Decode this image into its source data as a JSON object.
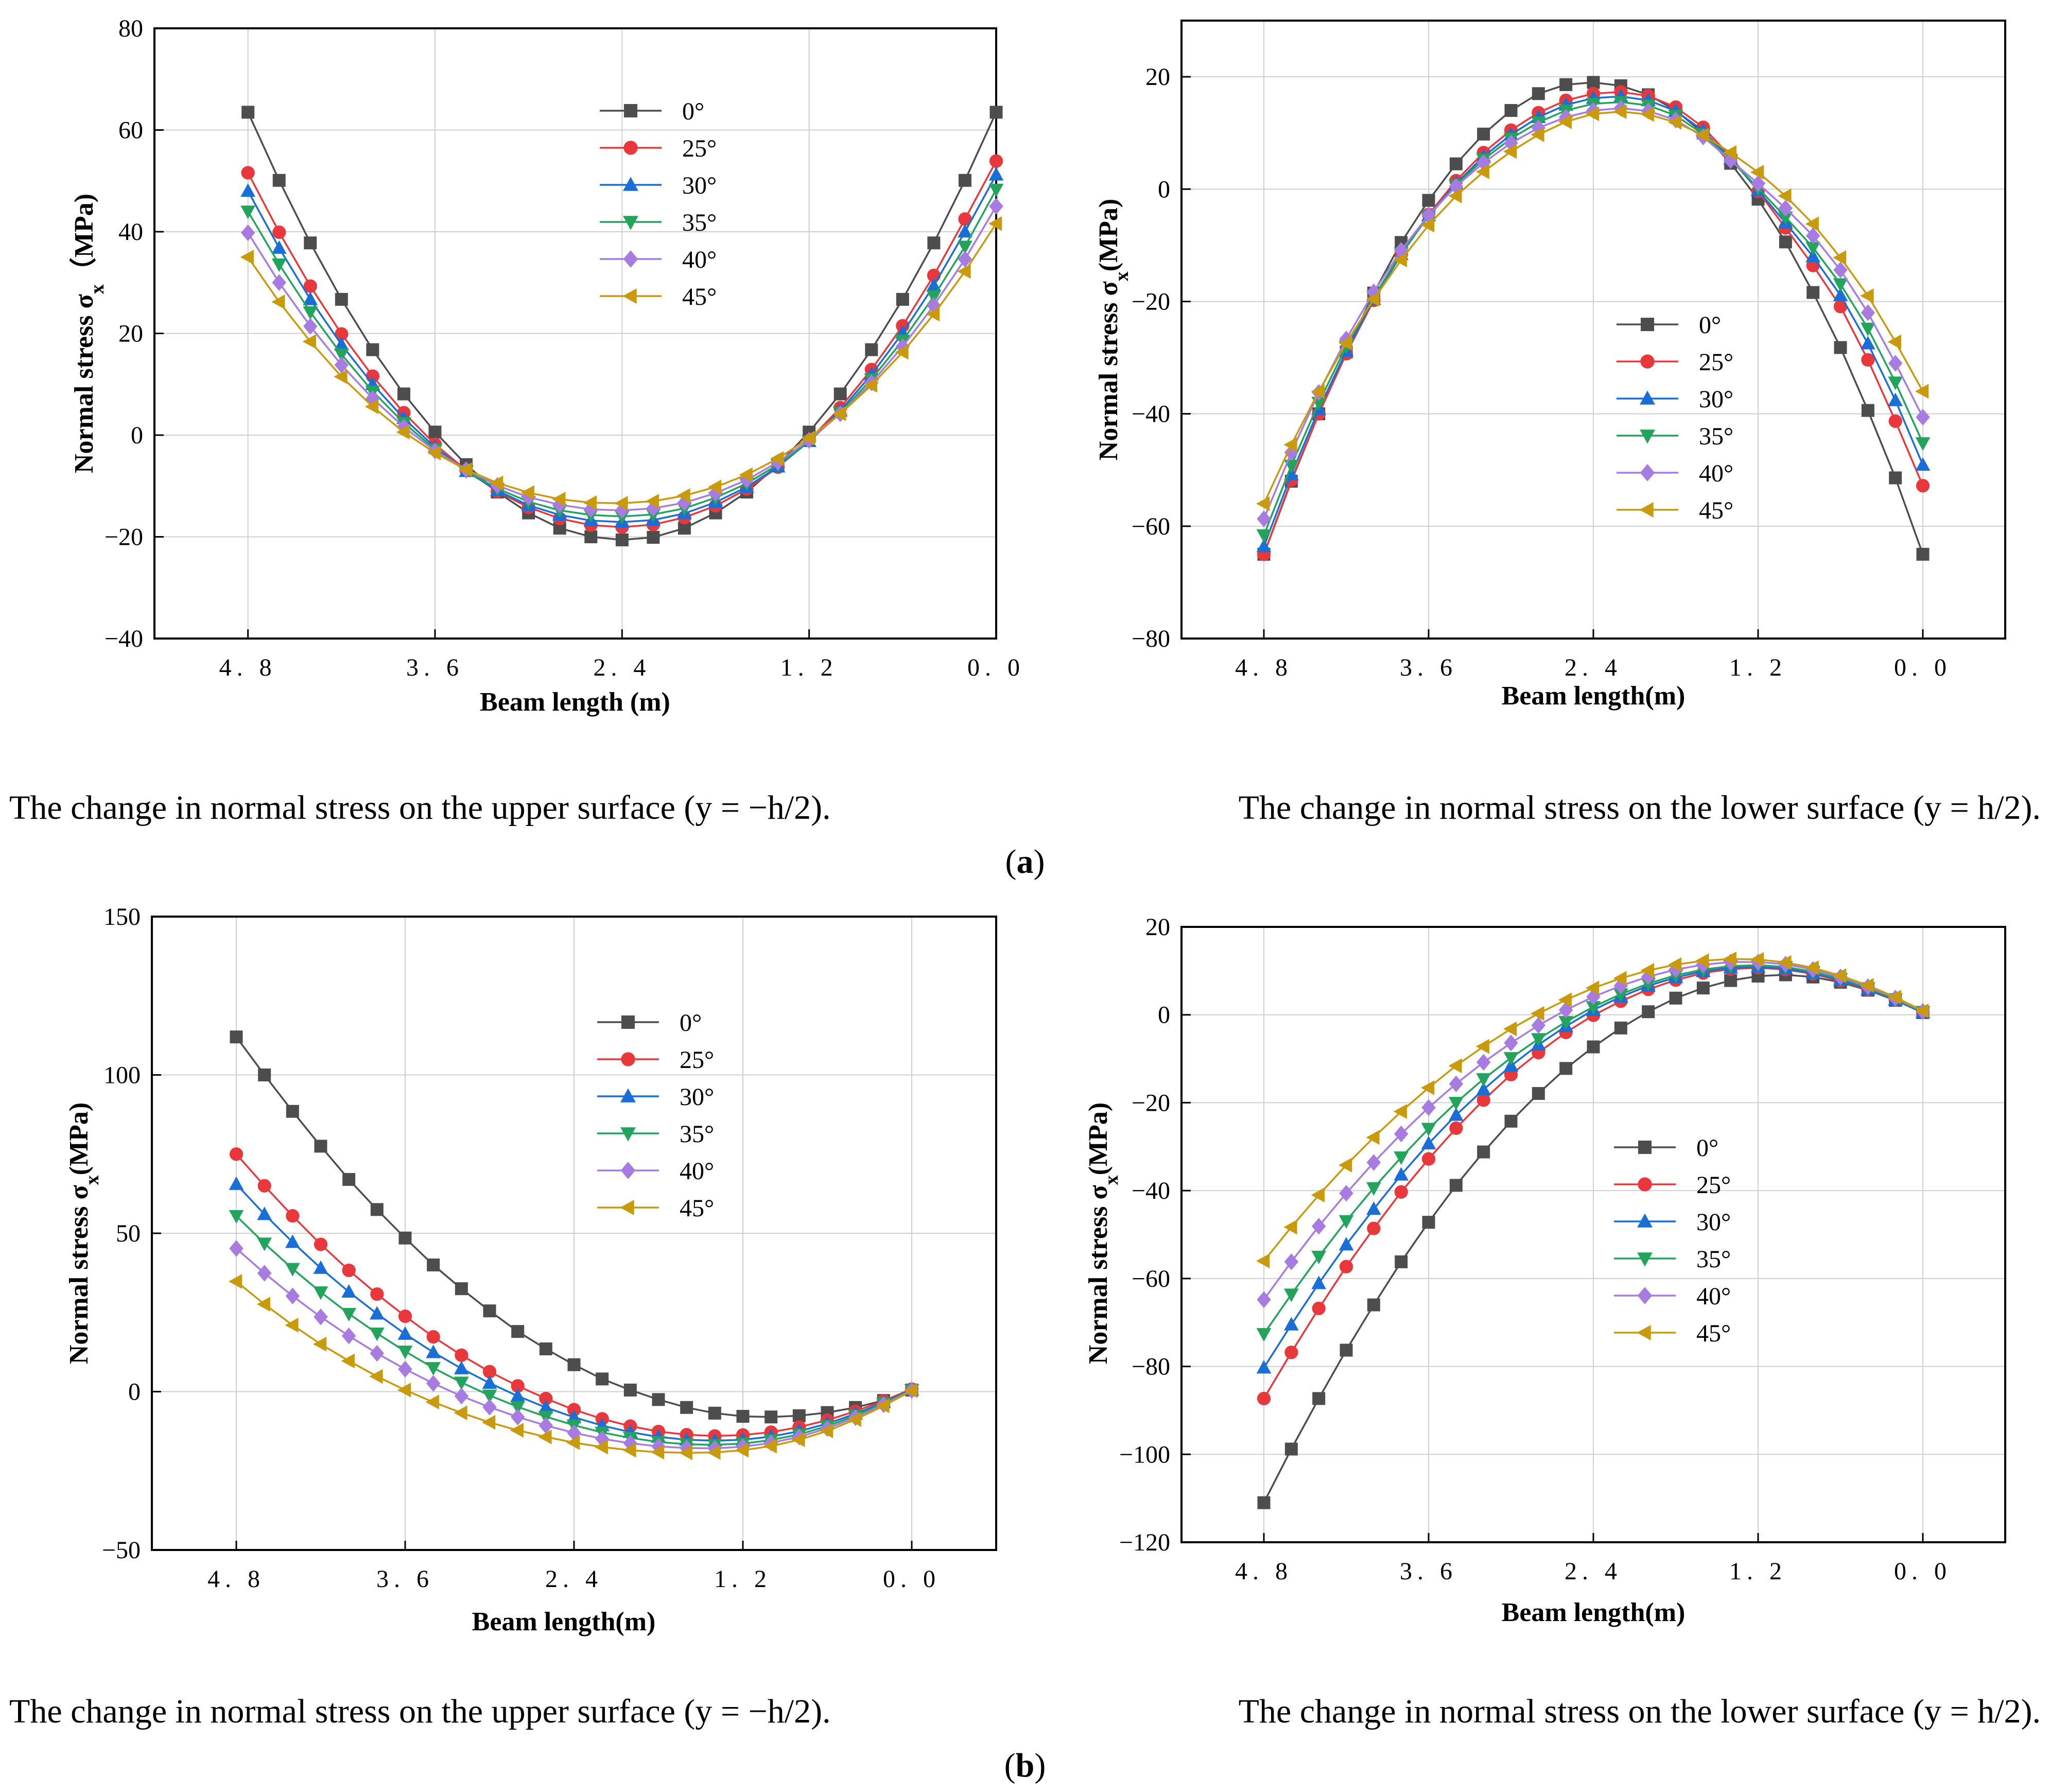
{
  "figure": {
    "row_a": {
      "caption_left": "The change in normal stress on the upper surface (y = −h/2).",
      "caption_right": "The change in normal stress on the lower surface (y = h/2).",
      "open_paren": "(",
      "label": "a",
      "close_paren": ")"
    },
    "row_b": {
      "caption_left": "The change in normal stress on the upper surface (y = −h/2).",
      "caption_right": "The change in normal stress on the lower surface (y = h/2).",
      "open_paren": "(",
      "label": "b",
      "close_paren": ")"
    }
  },
  "series_style": [
    {
      "color": "#4d4d4d",
      "marker": "square"
    },
    {
      "color": "#e8383b",
      "marker": "circle"
    },
    {
      "color": "#1a6fd6",
      "marker": "triangle-up"
    },
    {
      "color": "#22a45d",
      "marker": "triangle-down"
    },
    {
      "color": "#a87be0",
      "marker": "diamond"
    },
    {
      "color": "#c89a0c",
      "marker": "triangle-left"
    }
  ],
  "chart_data": [
    {
      "type": "line",
      "panel": "a-upper",
      "title": "",
      "xlabel": "Beam length (m)",
      "ylabel": "Normal stress σx（MPa)",
      "ylabel_parts": {
        "before": "Normal stress σ",
        "sub": "x",
        "after": "（MPa)"
      },
      "xlim": [
        5.4,
        0.0
      ],
      "ylim": [
        -40,
        80
      ],
      "xticks": [
        4.8,
        3.6,
        2.4,
        1.2,
        0.0
      ],
      "xtick_labels": [
        "4. 8",
        "3. 6",
        "2. 4",
        "1. 2",
        "0. 0"
      ],
      "yticks": [
        -40,
        -20,
        0,
        20,
        40,
        60,
        80
      ],
      "ytick_labels": [
        "−40",
        "−20",
        "0",
        "20",
        "40",
        "60",
        "80"
      ],
      "grid": true,
      "legend_position": "top-center",
      "x": [
        4.8,
        4.6,
        4.4,
        4.2,
        4.0,
        3.8,
        3.6,
        3.4,
        3.2,
        3.0,
        2.8,
        2.6,
        2.4,
        2.2,
        2.0,
        1.8,
        1.6,
        1.4,
        1.2,
        1.0,
        0.8,
        0.6,
        0.4,
        0.2,
        0.0
      ],
      "series": [
        {
          "name": "0°",
          "values": [
            63.5,
            50.1,
            37.8,
            26.7,
            16.8,
            8.1,
            0.6,
            -5.8,
            -11.2,
            -15.3,
            -18.3,
            -20.0,
            -20.6,
            -20.1,
            -18.3,
            -15.3,
            -11.2,
            -5.8,
            0.6,
            8.1,
            16.8,
            26.7,
            37.8,
            50.1,
            63.5
          ]
        },
        {
          "name": "25°",
          "values": [
            51.6,
            39.9,
            29.3,
            19.9,
            11.6,
            4.4,
            -1.8,
            -6.9,
            -11.1,
            -14.2,
            -16.4,
            -17.7,
            -18.1,
            -17.6,
            -16.2,
            -13.9,
            -10.6,
            -6.3,
            -1.0,
            5.4,
            12.9,
            21.5,
            31.4,
            42.5,
            53.9
          ]
        },
        {
          "name": "30°",
          "values": [
            48.0,
            36.8,
            26.7,
            17.8,
            10.0,
            3.3,
            -2.4,
            -7.1,
            -10.9,
            -13.8,
            -15.7,
            -16.8,
            -17.1,
            -16.7,
            -15.4,
            -13.2,
            -10.2,
            -6.2,
            -1.2,
            4.8,
            11.9,
            20.1,
            29.4,
            40.0,
            51.2
          ]
        },
        {
          "name": "35°",
          "values": [
            44.0,
            33.6,
            24.2,
            15.9,
            8.6,
            2.4,
            -2.8,
            -7.1,
            -10.5,
            -13.1,
            -14.8,
            -15.7,
            -16.0,
            -15.6,
            -14.4,
            -12.3,
            -9.5,
            -5.8,
            -1.2,
            4.4,
            11.0,
            18.6,
            27.3,
            37.1,
            48.3
          ]
        },
        {
          "name": "40°",
          "values": [
            39.8,
            30.0,
            21.4,
            13.8,
            7.2,
            1.6,
            -3.1,
            -6.8,
            -9.9,
            -12.2,
            -13.7,
            -14.6,
            -14.8,
            -14.4,
            -13.3,
            -11.4,
            -8.8,
            -5.3,
            -1.0,
            4.2,
            10.3,
            17.4,
            25.5,
            34.6,
            45.0
          ]
        },
        {
          "name": "45°",
          "values": [
            35.0,
            26.2,
            18.4,
            11.5,
            5.6,
            0.6,
            -3.5,
            -6.8,
            -9.4,
            -11.3,
            -12.6,
            -13.3,
            -13.4,
            -13.0,
            -11.9,
            -10.2,
            -7.8,
            -4.6,
            -0.6,
            4.2,
            9.8,
            16.3,
            23.8,
            32.2,
            41.6
          ]
        }
      ]
    },
    {
      "type": "line",
      "panel": "a-lower",
      "title": "",
      "xlabel": "Beam length(m)",
      "ylabel": "Normal stress  σx(MPa)",
      "ylabel_parts": {
        "before": "Normal stress  σ",
        "sub": "x",
        "after": "(MPa)"
      },
      "xlim": [
        5.4,
        -0.6
      ],
      "ylim": [
        -80,
        30
      ],
      "xticks": [
        4.8,
        3.6,
        2.4,
        1.2,
        0.0
      ],
      "xtick_labels": [
        "4. 8",
        "3. 6",
        "2. 4",
        "1. 2",
        "0. 0"
      ],
      "yticks": [
        -80,
        -60,
        -40,
        -20,
        0,
        20
      ],
      "ytick_labels": [
        "−80",
        "−60",
        "−40",
        "−20",
        "0",
        "20"
      ],
      "grid": true,
      "legend_position": "center-right",
      "x": [
        4.8,
        4.6,
        4.4,
        4.2,
        4.0,
        3.8,
        3.6,
        3.4,
        3.2,
        3.0,
        2.8,
        2.6,
        2.4,
        2.2,
        2.0,
        1.8,
        1.6,
        1.4,
        1.2,
        1.0,
        0.8,
        0.6,
        0.4,
        0.2,
        0.0
      ],
      "series": [
        {
          "name": "0°",
          "values": [
            -65.0,
            -52.0,
            -40.0,
            -29.0,
            -18.5,
            -9.5,
            -2.0,
            4.5,
            9.8,
            14.0,
            17.0,
            18.6,
            19.0,
            18.4,
            16.8,
            14.0,
            10.0,
            4.6,
            -1.8,
            -9.4,
            -18.4,
            -28.2,
            -39.4,
            -51.4,
            -65.0
          ]
        },
        {
          "name": "25°",
          "values": [
            -65.0,
            -51.8,
            -40.0,
            -29.3,
            -19.8,
            -11.6,
            -4.5,
            1.5,
            6.5,
            10.5,
            13.6,
            15.8,
            17.0,
            17.3,
            16.6,
            14.6,
            11.0,
            5.8,
            -0.4,
            -6.9,
            -13.6,
            -20.9,
            -30.4,
            -41.3,
            -52.8
          ]
        },
        {
          "name": "30°",
          "values": [
            -63.6,
            -50.8,
            -39.2,
            -28.8,
            -19.6,
            -11.6,
            -4.7,
            1.0,
            5.8,
            9.7,
            12.8,
            15.0,
            16.2,
            16.5,
            15.8,
            13.9,
            10.4,
            5.4,
            -0.2,
            -6.0,
            -12.0,
            -18.9,
            -27.5,
            -37.6,
            -49.1
          ]
        },
        {
          "name": "35°",
          "values": [
            -61.6,
            -49.2,
            -38.0,
            -28.0,
            -19.2,
            -11.4,
            -4.8,
            0.7,
            5.3,
            9.0,
            11.9,
            14.0,
            15.2,
            15.5,
            14.9,
            13.1,
            9.8,
            5.2,
            0.2,
            -5.0,
            -10.4,
            -16.9,
            -24.8,
            -34.4,
            -45.2
          ]
        },
        {
          "name": "40°",
          "values": [
            -58.7,
            -46.9,
            -36.2,
            -26.7,
            -18.3,
            -10.9,
            -4.6,
            0.5,
            4.7,
            8.2,
            10.9,
            12.8,
            14.0,
            14.4,
            13.9,
            12.3,
            9.3,
            5.1,
            1.0,
            -3.4,
            -8.3,
            -14.4,
            -22.0,
            -31.0,
            -40.6
          ]
        },
        {
          "name": "45°",
          "values": [
            -56.0,
            -45.5,
            -36.0,
            -27.4,
            -19.6,
            -12.6,
            -6.4,
            -1.2,
            3.1,
            6.7,
            9.7,
            12.0,
            13.4,
            13.8,
            13.3,
            11.9,
            9.6,
            6.5,
            3.0,
            -1.2,
            -6.2,
            -12.2,
            -19.0,
            -27.2,
            -36.0
          ]
        }
      ]
    },
    {
      "type": "line",
      "panel": "b-upper",
      "title": "",
      "xlabel": "Beam length(m)",
      "ylabel": "Normal stress  σx(MPa)",
      "ylabel_parts": {
        "before": "Normal stress  σ",
        "sub": "x",
        "after": "(MPa)"
      },
      "xlim": [
        5.4,
        -0.6
      ],
      "ylim": [
        -50,
        150
      ],
      "xticks": [
        4.8,
        3.6,
        2.4,
        1.2,
        0.0
      ],
      "xtick_labels": [
        "4. 8",
        "3. 6",
        "2. 4",
        "1. 2",
        "0. 0"
      ],
      "yticks": [
        -50,
        0,
        50,
        100,
        150
      ],
      "ytick_labels": [
        "−50",
        "0",
        "50",
        "100",
        "150"
      ],
      "grid": true,
      "legend_position": "top-center",
      "x": [
        4.8,
        4.6,
        4.4,
        4.2,
        4.0,
        3.8,
        3.6,
        3.4,
        3.2,
        3.0,
        2.8,
        2.6,
        2.4,
        2.2,
        2.0,
        1.8,
        1.6,
        1.4,
        1.2,
        1.0,
        0.8,
        0.6,
        0.4,
        0.2,
        0.0
      ],
      "series": [
        {
          "name": "0°",
          "values": [
            112.0,
            100.0,
            88.5,
            77.5,
            67.0,
            57.5,
            48.5,
            40.0,
            32.5,
            25.5,
            19.0,
            13.5,
            8.5,
            4.0,
            0.5,
            -2.5,
            -5.0,
            -6.8,
            -7.8,
            -8.0,
            -7.6,
            -6.6,
            -5.0,
            -2.8,
            0.5
          ]
        },
        {
          "name": "25°",
          "values": [
            75.0,
            65.0,
            55.5,
            46.5,
            38.3,
            30.8,
            23.8,
            17.3,
            11.5,
            6.3,
            1.8,
            -2.2,
            -5.7,
            -8.6,
            -10.9,
            -12.6,
            -13.6,
            -14.0,
            -13.7,
            -12.8,
            -11.2,
            -9.0,
            -6.2,
            -2.9,
            0.8
          ]
        },
        {
          "name": "30°",
          "values": [
            65.5,
            56.0,
            47.2,
            39.0,
            31.5,
            24.6,
            18.2,
            12.4,
            7.3,
            2.7,
            -1.4,
            -5.0,
            -8.1,
            -10.7,
            -12.8,
            -14.3,
            -15.2,
            -15.5,
            -15.2,
            -14.2,
            -12.5,
            -10.1,
            -7.0,
            -3.4,
            0.6
          ]
        },
        {
          "name": "35°",
          "values": [
            55.5,
            46.8,
            38.8,
            31.4,
            24.6,
            18.4,
            12.7,
            7.5,
            2.9,
            -1.2,
            -4.8,
            -7.9,
            -10.6,
            -12.9,
            -14.6,
            -15.9,
            -16.6,
            -16.8,
            -16.4,
            -15.3,
            -13.5,
            -10.9,
            -7.6,
            -3.7,
            0.5
          ]
        },
        {
          "name": "40°",
          "values": [
            45.2,
            37.4,
            30.2,
            23.6,
            17.6,
            12.1,
            7.1,
            2.6,
            -1.4,
            -4.9,
            -8.0,
            -10.7,
            -13.0,
            -14.9,
            -16.3,
            -17.3,
            -17.8,
            -17.9,
            -17.4,
            -16.2,
            -14.3,
            -11.6,
            -8.2,
            -4.1,
            0.4
          ]
        },
        {
          "name": "45°",
          "values": [
            34.8,
            27.6,
            21.0,
            15.0,
            9.7,
            4.8,
            0.5,
            -3.3,
            -6.7,
            -9.7,
            -12.2,
            -14.3,
            -16.1,
            -17.5,
            -18.5,
            -19.1,
            -19.3,
            -19.2,
            -18.5,
            -17.2,
            -15.2,
            -12.4,
            -8.8,
            -4.5,
            0.3
          ]
        }
      ]
    },
    {
      "type": "line",
      "panel": "b-lower",
      "title": "",
      "xlabel": "Beam length(m)",
      "ylabel": "Normal stress σx(MPa)",
      "ylabel_parts": {
        "before": "Normal stress σ",
        "sub": "x",
        "after": "(MPa)"
      },
      "xlim": [
        5.4,
        -0.6
      ],
      "ylim": [
        -120,
        20
      ],
      "xticks": [
        4.8,
        3.6,
        2.4,
        1.2,
        0.0
      ],
      "xtick_labels": [
        "4. 8",
        "3. 6",
        "2. 4",
        "1. 2",
        "0. 0"
      ],
      "yticks": [
        -120,
        -100,
        -80,
        -60,
        -40,
        -20,
        0,
        20
      ],
      "ytick_labels": [
        "−120",
        "−100",
        "−80",
        "−60",
        "−40",
        "−20",
        "0",
        "20"
      ],
      "grid": true,
      "legend_position": "center-right",
      "x": [
        4.8,
        4.6,
        4.4,
        4.2,
        4.0,
        3.8,
        3.6,
        3.4,
        3.2,
        3.0,
        2.8,
        2.6,
        2.4,
        2.2,
        2.0,
        1.8,
        1.6,
        1.4,
        1.2,
        1.0,
        0.8,
        0.6,
        0.4,
        0.2,
        0.0
      ],
      "series": [
        {
          "name": "0°",
          "values": [
            -111.0,
            -98.8,
            -87.3,
            -76.3,
            -66.0,
            -56.2,
            -47.2,
            -38.8,
            -31.2,
            -24.2,
            -17.9,
            -12.2,
            -7.3,
            -3.0,
            0.7,
            3.8,
            6.1,
            7.8,
            8.8,
            9.1,
            8.6,
            7.4,
            5.6,
            3.3,
            0.5
          ]
        },
        {
          "name": "25°",
          "values": [
            -87.3,
            -76.8,
            -66.8,
            -57.3,
            -48.6,
            -40.3,
            -32.8,
            -25.8,
            -19.4,
            -13.6,
            -8.6,
            -4.0,
            -0.1,
            3.1,
            5.8,
            7.9,
            9.5,
            10.4,
            10.7,
            10.3,
            9.3,
            7.7,
            5.7,
            3.4,
            0.6
          ]
        },
        {
          "name": "30°",
          "values": [
            -80.3,
            -70.5,
            -61.1,
            -52.3,
            -44.2,
            -36.4,
            -29.3,
            -22.8,
            -17.0,
            -11.6,
            -6.8,
            -2.6,
            1.1,
            4.1,
            6.6,
            8.5,
            9.9,
            10.7,
            10.9,
            10.5,
            9.5,
            7.9,
            5.8,
            3.4,
            0.6
          ]
        },
        {
          "name": "35°",
          "values": [
            -72.6,
            -63.6,
            -55.0,
            -46.9,
            -39.4,
            -32.4,
            -25.9,
            -20.0,
            -14.6,
            -9.8,
            -5.5,
            -1.6,
            1.8,
            4.7,
            7.1,
            9.0,
            10.3,
            11.1,
            11.3,
            10.9,
            9.8,
            8.2,
            6.1,
            3.6,
            0.7
          ]
        },
        {
          "name": "40°",
          "values": [
            -64.8,
            -56.2,
            -48.1,
            -40.6,
            -33.6,
            -27.1,
            -21.1,
            -15.7,
            -10.8,
            -6.4,
            -2.4,
            1.1,
            4.1,
            6.6,
            8.7,
            10.3,
            11.4,
            12.0,
            12.0,
            11.5,
            10.3,
            8.6,
            6.4,
            3.8,
            0.8
          ]
        },
        {
          "name": "45°",
          "values": [
            -56.0,
            -48.3,
            -41.0,
            -34.2,
            -27.9,
            -22.0,
            -16.6,
            -11.6,
            -7.2,
            -3.2,
            0.3,
            3.4,
            6.1,
            8.3,
            10.1,
            11.4,
            12.3,
            12.7,
            12.6,
            11.9,
            10.7,
            8.9,
            6.7,
            4.0,
            0.9
          ]
        }
      ]
    }
  ]
}
